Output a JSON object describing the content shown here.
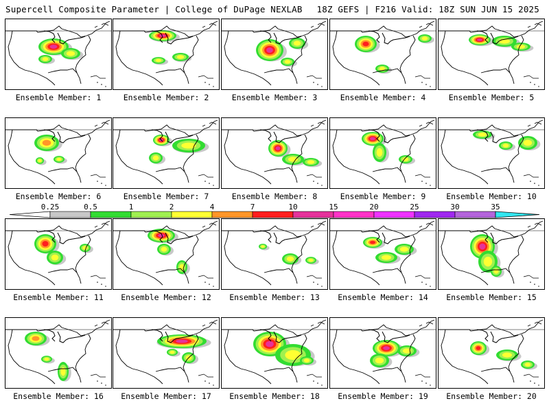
{
  "header": {
    "title": "Supercell Composite Parameter | College of DuPage NEXLAB",
    "run_info": "18Z GEFS | F216 Valid: 18Z SUN JUN 15 2025"
  },
  "colorbar": {
    "ticks": [
      "0.25",
      "0.5",
      "1",
      "2",
      "4",
      "7",
      "10",
      "15",
      "20",
      "25",
      "30",
      "35"
    ],
    "colors": [
      "#c8c8c8",
      "#32dc32",
      "#a0f050",
      "#ffff32",
      "#ff9628",
      "#ff1e1e",
      "#e6329b",
      "#ff32c8",
      "#f032ff",
      "#a028f0",
      "#b464dc",
      "#32e6f0"
    ],
    "below_color": "#ffffff",
    "above_color": "#32e6f0"
  },
  "members": [
    {
      "label": "Ensemble Member: 1",
      "max_level": 6
    },
    {
      "label": "Ensemble Member: 2",
      "max_level": 6
    },
    {
      "label": "Ensemble Member: 3",
      "max_level": 6
    },
    {
      "label": "Ensemble Member: 4",
      "max_level": 5
    },
    {
      "label": "Ensemble Member: 5",
      "max_level": 6
    },
    {
      "label": "Ensemble Member: 6",
      "max_level": 4
    },
    {
      "label": "Ensemble Member: 7",
      "max_level": 6
    },
    {
      "label": "Ensemble Member: 8",
      "max_level": 6
    },
    {
      "label": "Ensemble Member: 9",
      "max_level": 6
    },
    {
      "label": "Ensemble Member: 10",
      "max_level": 3
    },
    {
      "label": "Ensemble Member: 11",
      "max_level": 5
    },
    {
      "label": "Ensemble Member: 12",
      "max_level": 6
    },
    {
      "label": "Ensemble Member: 13",
      "max_level": 3
    },
    {
      "label": "Ensemble Member: 14",
      "max_level": 5
    },
    {
      "label": "Ensemble Member: 15",
      "max_level": 6
    },
    {
      "label": "Ensemble Member: 16",
      "max_level": 4
    },
    {
      "label": "Ensemble Member: 17",
      "max_level": 6
    },
    {
      "label": "Ensemble Member: 18",
      "max_level": 6
    },
    {
      "label": "Ensemble Member: 19",
      "max_level": 6
    },
    {
      "label": "Ensemble Member: 20",
      "max_level": 5
    }
  ]
}
